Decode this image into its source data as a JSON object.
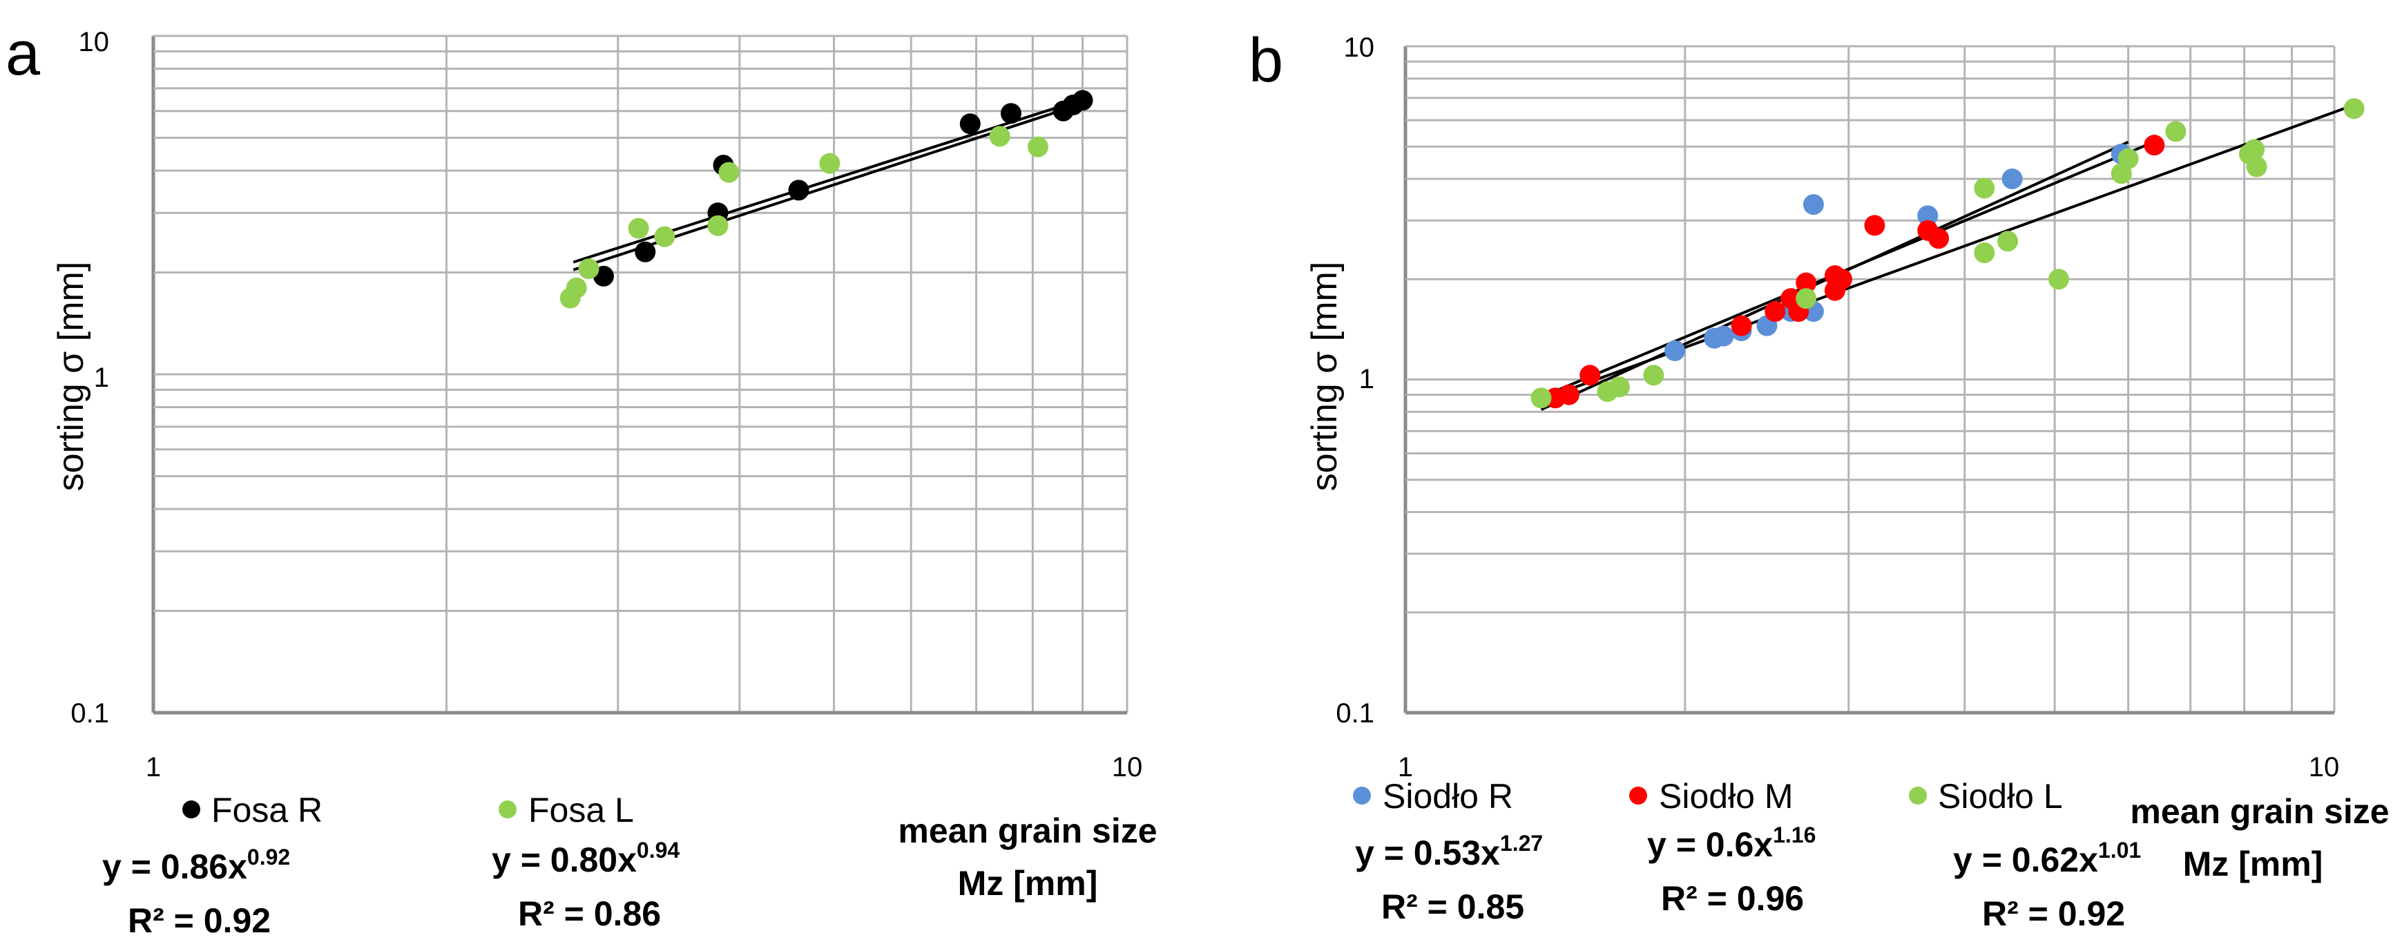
{
  "chart_data": [
    {
      "panel": "a",
      "type": "scatter",
      "xscale": "log",
      "yscale": "log",
      "xlim": [
        1,
        10
      ],
      "ylim": [
        0.1,
        10
      ],
      "x_ticks": [
        "1",
        "10"
      ],
      "y_ticks": [
        "0.1",
        "1",
        "10"
      ],
      "ylabel": "sorting σ [mm]",
      "xlabel": [
        "mean grain size",
        "Mz [mm]"
      ],
      "grid": true,
      "series": [
        {
          "name": "Fosa R",
          "color": "#000000",
          "equation": {
            "base": "y = 0.86x",
            "exp": "0.92"
          },
          "r2": "R² = 0.92",
          "fit": {
            "a": 0.86,
            "b": 0.92,
            "xmin": 2.7,
            "xmax": 9.0
          },
          "points": [
            [
              2.9,
              1.95
            ],
            [
              3.2,
              2.3
            ],
            [
              3.8,
              3.0
            ],
            [
              3.85,
              4.15
            ],
            [
              4.6,
              3.5
            ],
            [
              6.9,
              5.5
            ],
            [
              7.6,
              5.9
            ],
            [
              8.6,
              6.0
            ],
            [
              8.8,
              6.25
            ],
            [
              9.0,
              6.45
            ]
          ]
        },
        {
          "name": "Fosa L",
          "color": "#92d050",
          "equation": {
            "base": "y = 0.80x",
            "exp": "0.94"
          },
          "r2": "R² = 0.86",
          "fit": {
            "a": 0.8,
            "b": 0.94,
            "xmin": 2.7,
            "xmax": 8.8
          },
          "points": [
            [
              2.68,
              1.68
            ],
            [
              2.72,
              1.8
            ],
            [
              2.8,
              2.05
            ],
            [
              3.15,
              2.7
            ],
            [
              3.35,
              2.55
            ],
            [
              3.8,
              2.75
            ],
            [
              3.9,
              3.95
            ],
            [
              4.95,
              4.2
            ],
            [
              7.4,
              5.05
            ],
            [
              8.1,
              4.7
            ]
          ]
        }
      ]
    },
    {
      "panel": "b",
      "type": "scatter",
      "xscale": "log",
      "yscale": "log",
      "xlim": [
        1,
        10
      ],
      "ylim": [
        0.1,
        10
      ],
      "x_ticks": [
        "1",
        "10"
      ],
      "y_ticks": [
        "0.1",
        "1",
        "10"
      ],
      "ylabel": "sorting σ [mm]",
      "xlabel": [
        "mean grain size",
        "Mz [mm]"
      ],
      "grid": true,
      "series": [
        {
          "name": "Siodło R",
          "color": "#5b8fd8",
          "equation": {
            "base": "y = 0.53x",
            "exp": "1.27"
          },
          "r2": "R² = 0.85",
          "fit": {
            "a": 0.53,
            "b": 1.27,
            "xmin": 1.4,
            "xmax": 6.0
          },
          "points": [
            [
              1.95,
              1.22
            ],
            [
              2.15,
              1.33
            ],
            [
              2.2,
              1.35
            ],
            [
              2.3,
              1.4
            ],
            [
              2.45,
              1.45
            ],
            [
              2.6,
              1.6
            ],
            [
              2.75,
              1.6
            ],
            [
              2.75,
              3.35
            ],
            [
              3.65,
              3.1
            ],
            [
              4.5,
              4.0
            ],
            [
              5.9,
              4.75
            ]
          ]
        },
        {
          "name": "Siodło M",
          "color": "#ff0000",
          "equation": {
            "base": "y = 0.6x",
            "exp": "1.16"
          },
          "r2": "R² = 0.96",
          "fit": {
            "a": 0.6,
            "b": 1.16,
            "xmin": 1.4,
            "xmax": 6.4
          },
          "points": [
            [
              1.45,
              0.88
            ],
            [
              1.5,
              0.9
            ],
            [
              1.58,
              1.03
            ],
            [
              2.3,
              1.45
            ],
            [
              2.5,
              1.6
            ],
            [
              2.6,
              1.75
            ],
            [
              2.65,
              1.6
            ],
            [
              2.7,
              1.95
            ],
            [
              2.9,
              1.85
            ],
            [
              2.9,
              2.05
            ],
            [
              2.95,
              2.0
            ],
            [
              3.2,
              2.9
            ],
            [
              3.65,
              2.8
            ],
            [
              3.75,
              2.65
            ],
            [
              6.4,
              5.05
            ]
          ]
        },
        {
          "name": "Siodło L",
          "color": "#92d050",
          "equation": {
            "base": "y = 0.62x",
            "exp": "1.01"
          },
          "r2": "R² = 0.92",
          "fit": {
            "a": 0.62,
            "b": 1.01,
            "xmin": 1.4,
            "xmax": 10.5
          },
          "points": [
            [
              1.4,
              0.88
            ],
            [
              1.65,
              0.92
            ],
            [
              1.7,
              0.95
            ],
            [
              1.85,
              1.03
            ],
            [
              2.7,
              1.75
            ],
            [
              4.2,
              2.4
            ],
            [
              4.2,
              3.75
            ],
            [
              4.45,
              2.6
            ],
            [
              5.05,
              2.0
            ],
            [
              5.9,
              4.15
            ],
            [
              6.0,
              4.6
            ],
            [
              6.75,
              5.55
            ],
            [
              8.1,
              4.75
            ],
            [
              8.2,
              4.9
            ],
            [
              8.25,
              4.35
            ],
            [
              10.5,
              6.5
            ]
          ]
        }
      ]
    }
  ]
}
